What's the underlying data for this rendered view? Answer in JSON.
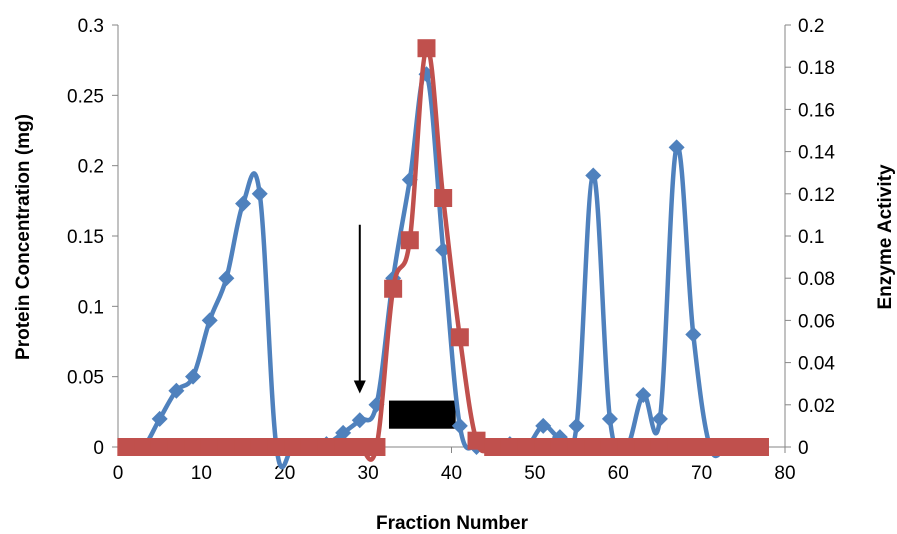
{
  "chart_data": {
    "type": "line",
    "title": "",
    "xlabel": "Fraction Number",
    "ylabel": "Protein Concentration (mg)",
    "y2label": "Enzyme Activity",
    "xlim": [
      0,
      80
    ],
    "ylim": [
      0,
      0.3
    ],
    "y2lim": [
      0,
      0.2
    ],
    "xticks": [
      "0",
      "10",
      "20",
      "30",
      "40",
      "50",
      "60",
      "70",
      "80"
    ],
    "yticks": [
      "0",
      "0.05",
      "0.1",
      "0.15",
      "0.2",
      "0.25",
      "0.3"
    ],
    "y2ticks": [
      "0",
      "0.02",
      "0.04",
      "0.06",
      "0.08",
      "0.1",
      "0.12",
      "0.14",
      "0.16",
      "0.18",
      "0.2"
    ],
    "grid": false,
    "legend": "none",
    "series": [
      {
        "axis": "left",
        "color": "#4f81bd",
        "marker": "diamond",
        "x": [
          1,
          3,
          5,
          7,
          9,
          11,
          13,
          15,
          17,
          19,
          21,
          23,
          25,
          27,
          29,
          31,
          33,
          35,
          37,
          39,
          41,
          43,
          45,
          47,
          49,
          51,
          53,
          55,
          57,
          59,
          61,
          63,
          65,
          67,
          69,
          71,
          73,
          75,
          77
        ],
        "y": [
          0,
          0,
          0.02,
          0.04,
          0.05,
          0.09,
          0.12,
          0.173,
          0.18,
          0,
          0,
          0,
          0.002,
          0.01,
          0.019,
          0.03,
          0.12,
          0.19,
          0.265,
          0.14,
          0.015,
          0,
          0,
          0.002,
          0,
          0.015,
          0.007,
          0.015,
          0.193,
          0.02,
          0,
          0.037,
          0.02,
          0.213,
          0.08,
          0,
          0,
          0,
          0
        ]
      },
      {
        "axis": "right",
        "color": "#c0504d",
        "marker": "square",
        "x": [
          1,
          3,
          5,
          7,
          9,
          11,
          13,
          15,
          17,
          19,
          21,
          23,
          25,
          27,
          29,
          31,
          33,
          35,
          37,
          39,
          41,
          43,
          45,
          47,
          49,
          51,
          53,
          55,
          57,
          59,
          61,
          63,
          65,
          67,
          69,
          71,
          73,
          75,
          77
        ],
        "y": [
          0,
          0,
          0,
          0,
          0,
          0,
          0,
          0,
          0,
          0,
          0,
          0,
          0,
          0,
          0,
          0,
          0.075,
          0.098,
          0.189,
          0.118,
          0.052,
          0.003,
          0,
          0,
          0,
          0,
          0,
          0,
          0,
          0,
          0,
          0,
          0,
          0,
          0,
          0,
          0,
          0,
          0
        ]
      }
    ],
    "annotations": [
      {
        "type": "arrow",
        "direction": "down",
        "x": 29,
        "y_from": 0.158,
        "y_to": 0.038
      },
      {
        "type": "bar",
        "x_range": [
          32.5,
          40.5
        ],
        "y_range": [
          0.013,
          0.033
        ]
      }
    ]
  }
}
